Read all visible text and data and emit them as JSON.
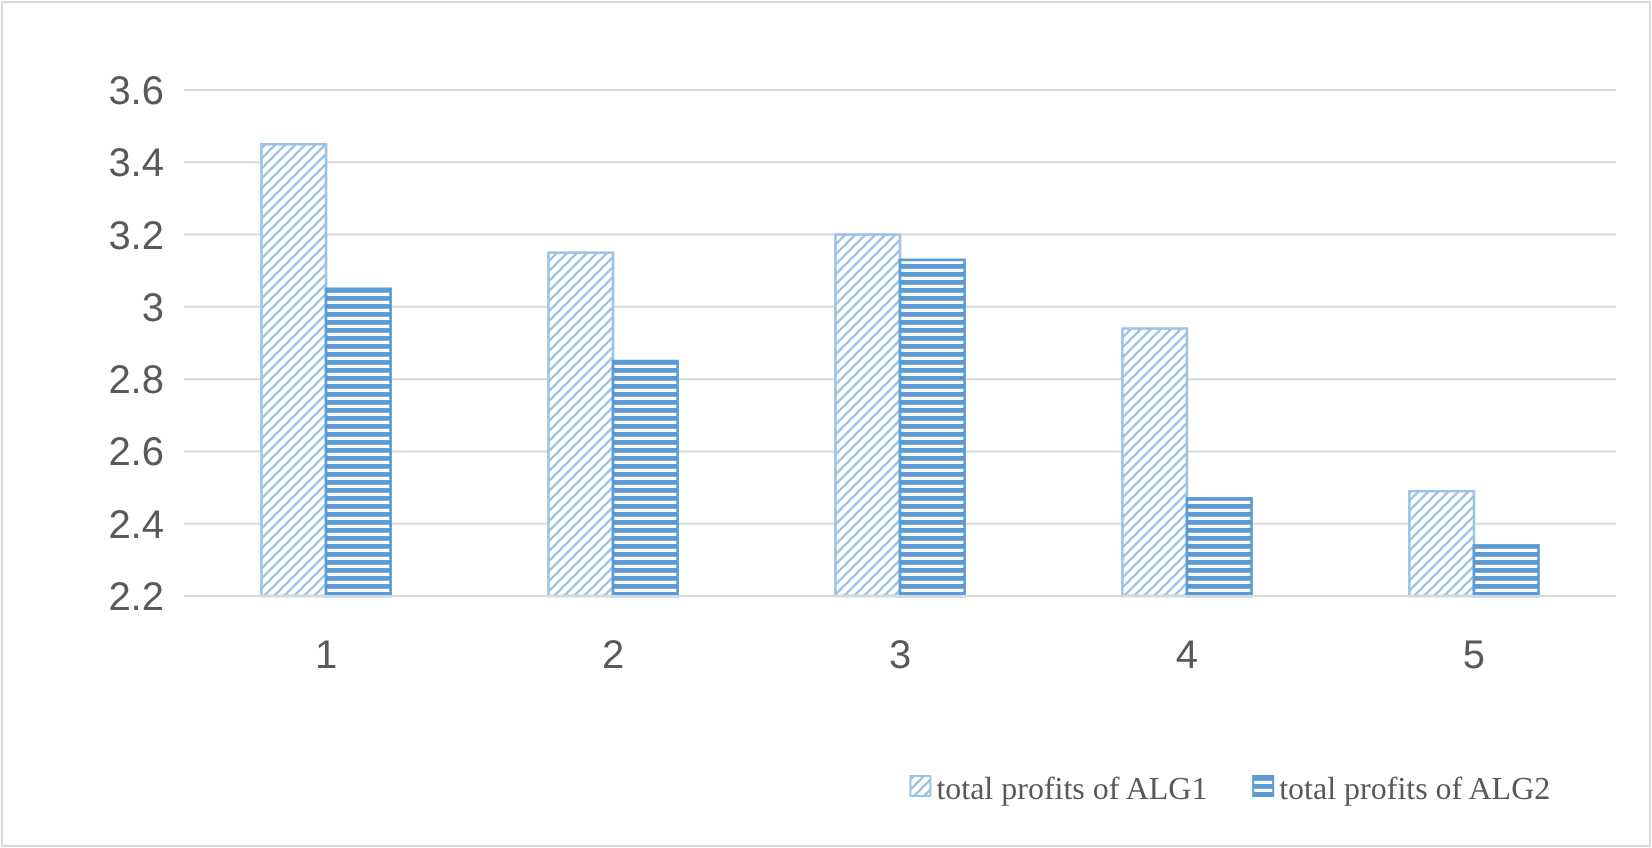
{
  "chart_data": {
    "type": "bar",
    "categories": [
      "1",
      "2",
      "3",
      "4",
      "5"
    ],
    "series": [
      {
        "name": "total profits of ALG1",
        "color": "#9dc3e6",
        "values": [
          3.45,
          3.15,
          3.2,
          2.94,
          2.49
        ]
      },
      {
        "name": "total profits of ALG2",
        "color": "#5b9bd5",
        "values": [
          3.05,
          2.85,
          3.13,
          2.47,
          2.34
        ]
      }
    ],
    "ylim": [
      2.2,
      3.6
    ],
    "yticks": [
      2.2,
      2.4,
      2.6,
      2.8,
      3,
      3.2,
      3.4,
      3.6
    ],
    "grid": "y",
    "legend": "bottom right"
  }
}
